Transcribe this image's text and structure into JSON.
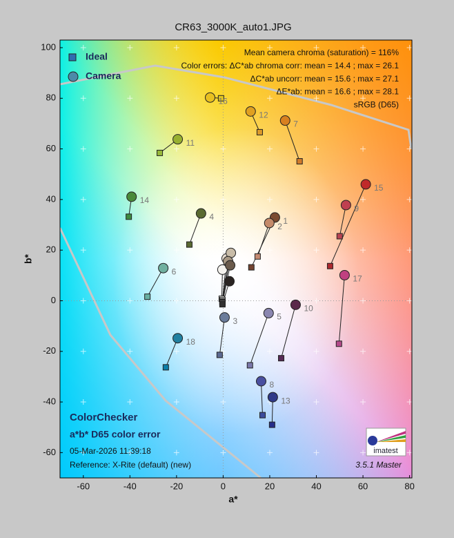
{
  "chart_data": {
    "type": "scatter",
    "title": "CR63_3000K_auto1.JPG",
    "x_label": "a*",
    "y_label": "b*",
    "xlim": [
      -70,
      81
    ],
    "ylim": [
      -70,
      103
    ],
    "xticks": [
      -60,
      -40,
      -20,
      0,
      20,
      40,
      60,
      80
    ],
    "yticks": [
      -60,
      -40,
      -20,
      0,
      20,
      40,
      60,
      80,
      100
    ],
    "grid": true,
    "point_labels": [
      "1",
      "2",
      "3",
      "4",
      "5",
      "6",
      "7",
      "8",
      "9",
      "10",
      "11",
      "12",
      "13",
      "14",
      "15",
      "16",
      "17",
      "18",
      null,
      null,
      null,
      null,
      null,
      null
    ],
    "series": [
      {
        "name": "Ideal",
        "marker": "square",
        "color": "#2f6db0",
        "x": [
          12.1,
          14.8,
          -1.5,
          -14.5,
          11.5,
          -32.5,
          32.8,
          16.9,
          50.0,
          24.9,
          -27.2,
          15.7,
          21.0,
          -40.5,
          45.9,
          -0.9,
          49.7,
          -24.6,
          -0.6,
          -0.3,
          -0.3,
          -0.3,
          -0.3,
          -0.3
        ],
        "values": [
          13.2,
          17.5,
          -21.4,
          22.2,
          -25.5,
          1.6,
          55.1,
          -45.2,
          25.5,
          -22.7,
          58.4,
          66.6,
          -49.0,
          33.2,
          13.7,
          80.0,
          -17.0,
          -26.3,
          0.8,
          0.3,
          -0.3,
          -0.5,
          -0.8,
          -1.4
        ],
        "colors": [
          "#744432",
          "#c48a72",
          "#5c6a92",
          "#5a6a32",
          "#7a78aa",
          "#68b0a2",
          "#d07a2a",
          "#3c4c9c",
          "#b84452",
          "#562a56",
          "#98b83a",
          "#dc9a2a",
          "#262e8a",
          "#3e8a40",
          "#ac2a30",
          "#e2c620",
          "#b44a8a",
          "#0a7ea8",
          "#f0f0ec",
          "#c8c8c6",
          "#a0a09e",
          "#7a7a78",
          "#545454",
          "#323232"
        ]
      },
      {
        "name": "Camera",
        "marker": "circle",
        "color": "#4c8aa8",
        "x": [
          22.2,
          19.8,
          0.6,
          -9.5,
          19.5,
          -25.7,
          26.6,
          16.3,
          52.7,
          31.1,
          -19.5,
          11.8,
          21.3,
          -39.3,
          61.2,
          -5.6,
          52.1,
          -19.5,
          -0.3,
          1.5,
          3.3,
          2.1,
          3.0,
          2.7
        ],
        "values": [
          32.9,
          30.7,
          -6.6,
          34.5,
          -4.9,
          12.9,
          71.2,
          -31.8,
          37.8,
          -1.6,
          63.8,
          74.8,
          -38.1,
          41.1,
          46.0,
          80.3,
          10.1,
          -14.8,
          12.3,
          16.7,
          18.9,
          15.6,
          14.0,
          7.7
        ],
        "colors": [
          "#7a4a30",
          "#c48a6a",
          "#6a7c9a",
          "#5a6a30",
          "#8a86b0",
          "#70b0a0",
          "#d88020",
          "#4a50a0",
          "#c04050",
          "#5a2a4a",
          "#98b030",
          "#e0a020",
          "#303a88",
          "#4a8a3a",
          "#c02a2a",
          "#e8c020",
          "#c04080",
          "#2080a0",
          "#f4f2ee",
          "#e6dcd0",
          "#c8bca8",
          "#a89884",
          "#6a5a4c",
          "#2a2422"
        ]
      }
    ],
    "legend_position": "upper left",
    "annotations": [
      "Mean camera chroma (saturation) = 116%",
      "Color errors: ΔC*ab chroma corr:  mean = 14.4 ;  max = 26.1",
      "ΔC*ab uncorr:  mean = 15.6 ;  max = 27.1",
      "ΔE*ab:  mean = 16.6 ;  max = 28.1",
      "sRGB (D65)"
    ],
    "footer": {
      "chart_name": "ColorChecker",
      "subtitle": "a*b* D65 color error",
      "date": "05-Mar-2026 11:39:18",
      "reference": "Reference: X-Rite (default) (new)",
      "version": "3.5.1  Master",
      "logo": "imatest"
    }
  }
}
